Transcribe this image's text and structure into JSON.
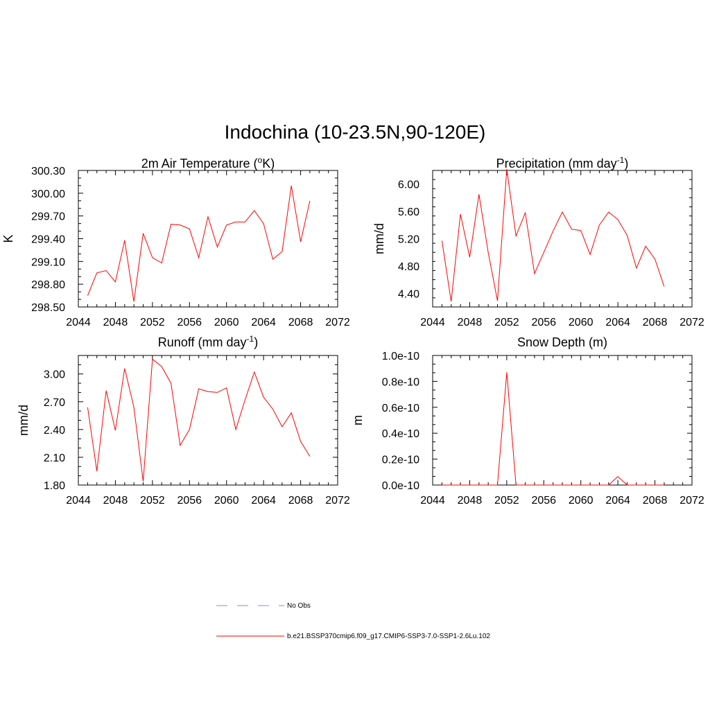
{
  "main_title": "Indochina (10-23.5N,90-120E)",
  "legend": {
    "obs_label": "No Obs",
    "model_label": "b.e21.BSSP370cmip6.f09_g17.CMIP6-SSP3-7.0-SSP1-2.6Lu.102",
    "obs_color": "#a0a0e0",
    "model_color": "#ff0000"
  },
  "chart_data": [
    {
      "type": "line",
      "title": "2m Air Temperature (°K)",
      "title_parts": {
        "pre": "2m Air Temperature (",
        "sup": "o",
        "post": "K)"
      },
      "ylabel": "K",
      "xlim": [
        2044,
        2072
      ],
      "ylim": [
        298.5,
        300.3
      ],
      "xticks": [
        2044,
        2048,
        2052,
        2056,
        2060,
        2064,
        2068,
        2072
      ],
      "yticks": [
        "298.50",
        "298.80",
        "299.10",
        "299.40",
        "299.70",
        "300.00",
        "300.30"
      ],
      "ytick_values": [
        298.5,
        298.8,
        299.1,
        299.4,
        299.7,
        300.0,
        300.3
      ],
      "series": [
        {
          "color": "#ff0000",
          "x": [
            2045,
            2046,
            2047,
            2048,
            2049,
            2050,
            2051,
            2052,
            2053,
            2054,
            2055,
            2056,
            2057,
            2058,
            2059,
            2060,
            2061,
            2062,
            2063,
            2064,
            2065,
            2066,
            2067,
            2068,
            2069
          ],
          "values": [
            298.65,
            298.95,
            298.98,
            298.83,
            299.38,
            298.57,
            299.47,
            299.15,
            299.08,
            299.59,
            299.58,
            299.53,
            299.15,
            299.69,
            299.29,
            299.58,
            299.62,
            299.62,
            299.77,
            299.6,
            299.13,
            299.23,
            300.1,
            299.36,
            299.9
          ]
        }
      ]
    },
    {
      "type": "line",
      "title": "Precipitation (mm day⁻¹)",
      "title_parts": {
        "pre": "Precipitation (mm day",
        "sup": "-1",
        "post": ")"
      },
      "ylabel": "mm/d",
      "xlim": [
        2044,
        2072
      ],
      "ylim": [
        4.2,
        6.2
      ],
      "xticks": [
        2044,
        2048,
        2052,
        2056,
        2060,
        2064,
        2068,
        2072
      ],
      "yticks": [
        "4.40",
        "4.80",
        "5.20",
        "5.60",
        "6.00"
      ],
      "ytick_values": [
        4.4,
        4.8,
        5.2,
        5.6,
        6.0
      ],
      "series": [
        {
          "color": "#ff0000",
          "x": [
            2045,
            2046,
            2047,
            2048,
            2049,
            2050,
            2051,
            2052,
            2053,
            2054,
            2055,
            2056,
            2057,
            2058,
            2059,
            2060,
            2061,
            2062,
            2063,
            2064,
            2065,
            2066,
            2067,
            2068,
            2069
          ],
          "values": [
            5.17,
            4.28,
            5.56,
            4.93,
            5.85,
            5.0,
            4.29,
            6.22,
            5.24,
            5.58,
            4.69,
            5.0,
            5.31,
            5.59,
            5.34,
            5.32,
            4.97,
            5.4,
            5.59,
            5.48,
            5.25,
            4.77,
            5.09,
            4.9,
            4.5
          ]
        }
      ]
    },
    {
      "type": "line",
      "title": "Runoff (mm day⁻¹)",
      "title_parts": {
        "pre": "Runoff (mm day",
        "sup": "-1",
        "post": ")"
      },
      "ylabel": "mm/d",
      "xlim": [
        2044,
        2072
      ],
      "ylim": [
        1.8,
        3.2
      ],
      "xticks": [
        2044,
        2048,
        2052,
        2056,
        2060,
        2064,
        2068,
        2072
      ],
      "yticks": [
        "1.80",
        "2.10",
        "2.40",
        "2.70",
        "3.00"
      ],
      "ytick_values": [
        1.8,
        2.1,
        2.4,
        2.7,
        3.0
      ],
      "series": [
        {
          "color": "#ff0000",
          "x": [
            2045,
            2046,
            2047,
            2048,
            2049,
            2050,
            2051,
            2052,
            2053,
            2054,
            2055,
            2056,
            2057,
            2058,
            2059,
            2060,
            2061,
            2062,
            2063,
            2064,
            2065,
            2066,
            2067,
            2068,
            2069
          ],
          "values": [
            2.64,
            1.95,
            2.82,
            2.39,
            3.06,
            2.64,
            1.84,
            3.16,
            3.08,
            2.9,
            2.23,
            2.4,
            2.84,
            2.81,
            2.8,
            2.85,
            2.4,
            2.72,
            3.02,
            2.75,
            2.62,
            2.43,
            2.58,
            2.27,
            2.11
          ]
        }
      ]
    },
    {
      "type": "line",
      "title": "Snow Depth (m)",
      "title_parts": {
        "pre": "Snow Depth (m)",
        "sup": "",
        "post": ""
      },
      "ylabel": "m",
      "xlim": [
        2044,
        2072
      ],
      "ylim": [
        0.0,
        1.0
      ],
      "xticks": [
        2044,
        2048,
        2052,
        2056,
        2060,
        2064,
        2068,
        2072
      ],
      "yticks": [
        "0.0e-10",
        "0.2e-10",
        "0.4e-10",
        "0.6e-10",
        "0.8e-10",
        "1.0e-10"
      ],
      "ytick_values": [
        0.0,
        0.2,
        0.4,
        0.6,
        0.8,
        1.0
      ],
      "value_unit": "1e-10 m",
      "series": [
        {
          "color": "#ff0000",
          "x": [
            2045,
            2046,
            2047,
            2048,
            2049,
            2050,
            2051,
            2052,
            2053,
            2054,
            2055,
            2056,
            2057,
            2058,
            2059,
            2060,
            2061,
            2062,
            2063,
            2064,
            2065,
            2066,
            2067,
            2068,
            2069
          ],
          "values": [
            0,
            0,
            0,
            0,
            0,
            0,
            0,
            0.87,
            0,
            0,
            0,
            0,
            0,
            0,
            0,
            0,
            0,
            0,
            0,
            0.065,
            0,
            0,
            0,
            0,
            0
          ]
        }
      ]
    }
  ]
}
